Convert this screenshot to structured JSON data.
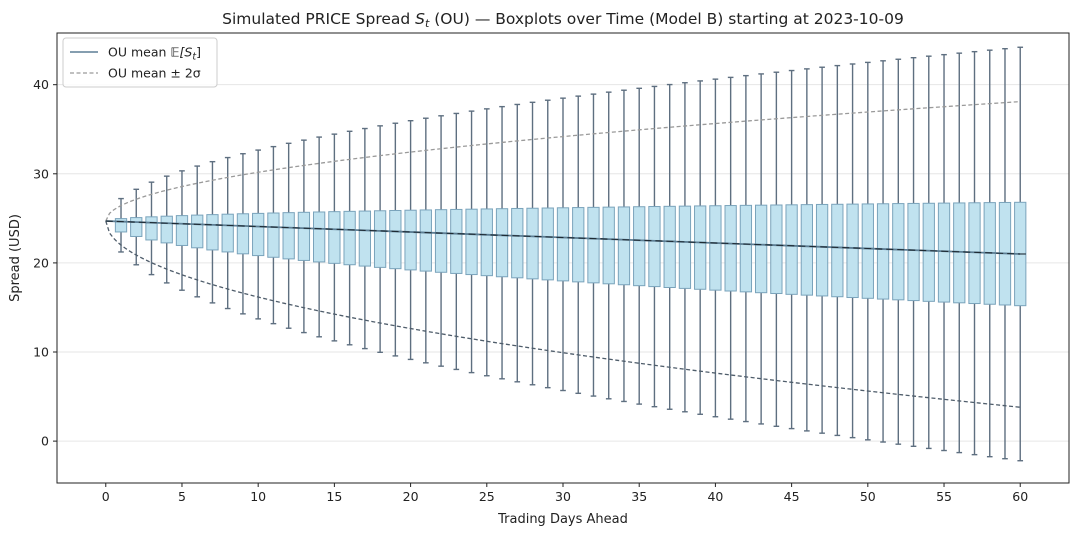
{
  "chart_data": {
    "type": "boxplot",
    "title_prefix": "Simulated PRICE Spread ",
    "title_symbol": "S",
    "title_subscript": "t",
    "title_suffix": " (OU) — Boxplots over Time (Model B) starting at 2023-10-09",
    "xlabel": "Trading Days Ahead",
    "ylabel": "Spread (USD)",
    "xlim": [
      -3.2,
      63.2
    ],
    "ylim": [
      -4.7,
      45.8
    ],
    "xticks": [
      0,
      5,
      10,
      15,
      20,
      25,
      30,
      35,
      40,
      45,
      50,
      55,
      60
    ],
    "yticks": [
      0,
      10,
      20,
      30,
      40
    ],
    "grid": "horizontal",
    "legend_position": "top-left",
    "legend": [
      {
        "label_prefix": "OU mean ",
        "label_symbol": "𝔼[S",
        "label_sub": "t",
        "label_close": "]",
        "style": "solid",
        "color": "#5d7f95"
      },
      {
        "label": "OU mean ± 2σ",
        "style": "dashed",
        "color": "#9a9a9a"
      }
    ],
    "start_value": 24.7,
    "mean_end_value": 21.0,
    "band_upper_end": 38.1,
    "band_lower_end": 3.8,
    "band_shape_exponent": 0.5,
    "box_days": [
      1,
      60
    ],
    "box_q1_end": 15.2,
    "box_q3_end": 26.8,
    "whisker_high_end": 44.2,
    "whisker_low_end": -2.2,
    "colors": {
      "box_fill": "#c0e2ef",
      "box_edge": "#7aa3bb",
      "whisker": "#5e6f80",
      "median": "#1e2a33",
      "band_upper": "#9a9a9a",
      "band_lower": "#4f5d6b",
      "grid": "#e6e6e6"
    }
  }
}
